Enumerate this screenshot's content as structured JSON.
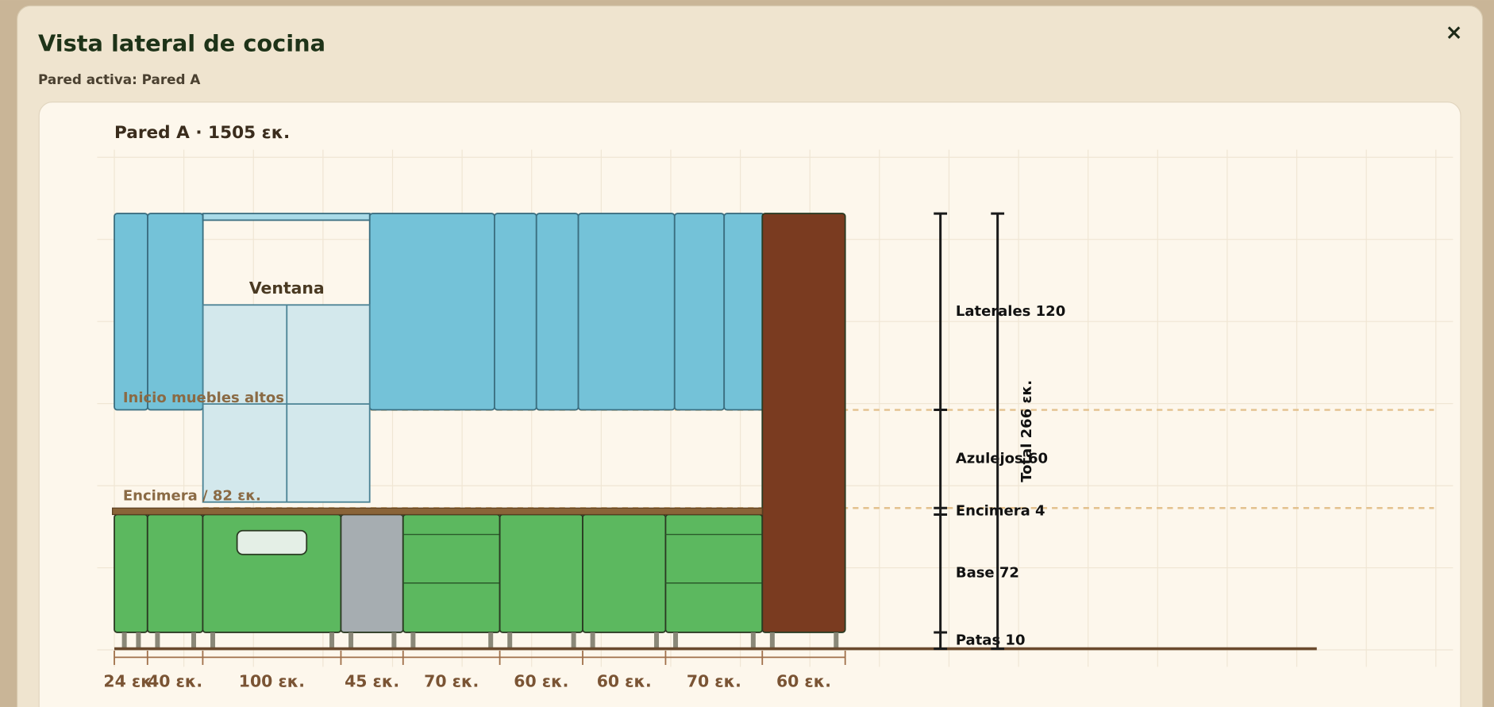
{
  "modal": {
    "title": "Vista lateral de cocina",
    "subtitle": "Pared activa: Pared A",
    "close": "×"
  },
  "wall": {
    "title": "Pared A · 1505 εκ.",
    "window": "Ventana",
    "upper_start": "Inicio muebles altos",
    "counter": "Encimera / 82 εκ.",
    "modules": [
      {
        "value": 24,
        "label": "24 εκ.",
        "color": "#5cb85f"
      },
      {
        "value": 40,
        "label": "40 εκ.",
        "color": "#5cb85f"
      },
      {
        "value": 100,
        "label": "100 εκ.",
        "color": "#5cb85f"
      },
      {
        "value": 45,
        "label": "45 εκ.",
        "color": "#a6adb1"
      },
      {
        "value": 70,
        "label": "70 εκ.",
        "color": "#5cb85f"
      },
      {
        "value": 60,
        "label": "60 εκ.",
        "color": "#5cb85f"
      },
      {
        "value": 60,
        "label": "60 εκ.",
        "color": "#5cb85f"
      },
      {
        "value": 70,
        "label": "70 εκ.",
        "color": "#5cb85f"
      },
      {
        "value": 60,
        "label": "60 εκ.",
        "color": "#7a3b20"
      }
    ],
    "heights": [
      {
        "value": 10,
        "label": "Patas 10"
      },
      {
        "value": 72,
        "label": "Base 72"
      },
      {
        "value": 4,
        "label": "Encimera 4"
      },
      {
        "value": 60,
        "label": "Azulejos 60"
      },
      {
        "value": 120,
        "label": "Laterales 120"
      }
    ],
    "total": {
      "value": 266,
      "label": "Total 266 εκ."
    }
  }
}
